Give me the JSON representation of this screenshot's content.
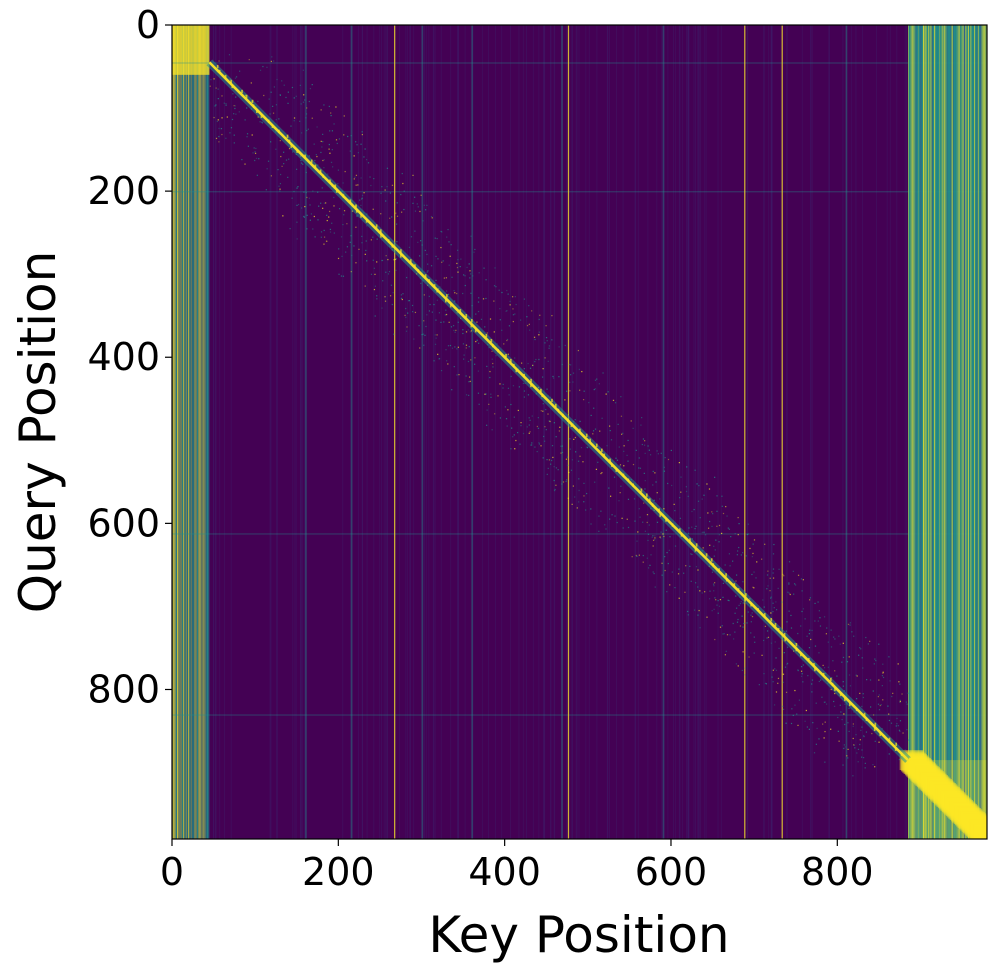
{
  "chart_data": {
    "type": "heatmap",
    "title": "",
    "xlabel": "Key Position",
    "ylabel": "Query Position",
    "xlim": [
      0,
      980
    ],
    "ylim": [
      980,
      0
    ],
    "x_ticks": [
      0,
      200,
      400,
      600,
      800
    ],
    "y_ticks": [
      0,
      200,
      400,
      600,
      800
    ],
    "colormap": "viridis",
    "colors": {
      "low": "#440154",
      "mid": "#21918c",
      "high": "#fde725"
    },
    "size": [
      980,
      980
    ],
    "structure": {
      "diagonal": "bright diagonal band from (50, 45) to (885, 885)",
      "sink_columns_left": [
        0,
        45
      ],
      "dense_block_right": [
        885,
        980
      ],
      "bright_vertical_lines": [
        267,
        476,
        688,
        733
      ],
      "faint_vertical_lines": [
        160,
        215,
        300,
        360,
        468,
        590,
        810
      ],
      "faint_horizontal_lines": [
        45,
        200,
        612,
        830
      ]
    }
  }
}
